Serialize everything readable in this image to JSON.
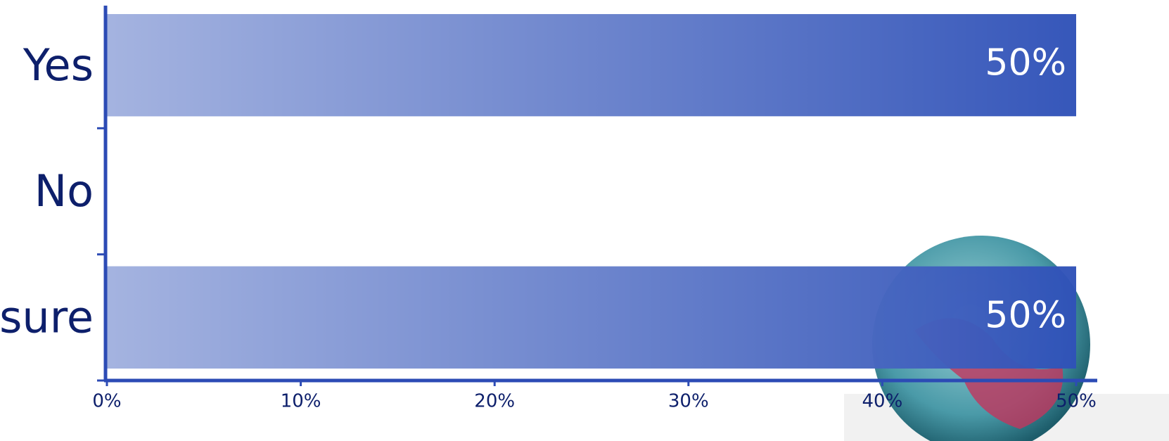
{
  "chart_data": {
    "type": "bar",
    "orientation": "horizontal",
    "categories": [
      "Yes",
      "No",
      "sure"
    ],
    "values": [
      50,
      0,
      50
    ],
    "value_labels": [
      "50%",
      null,
      "50%"
    ],
    "color": "#2f52b8",
    "xlim": [
      0,
      50
    ],
    "xticks": [
      {
        "value": 0,
        "label": "0%"
      },
      {
        "value": 10,
        "label": "10%"
      },
      {
        "value": 20,
        "label": "20%"
      },
      {
        "value": 30,
        "label": "30%"
      },
      {
        "value": 40,
        "label": "40%"
      },
      {
        "value": 50,
        "label": "50%"
      }
    ]
  }
}
